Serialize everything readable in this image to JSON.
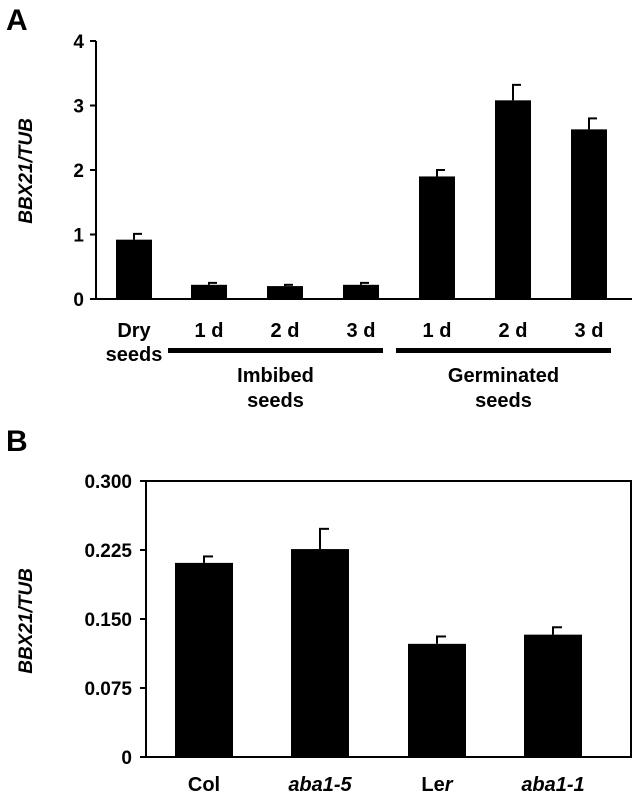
{
  "chart_data": [
    {
      "type": "bar",
      "panel_label": "A",
      "ylabel": "BBX21/TUB",
      "ylim": [
        0,
        4
      ],
      "yticks": [
        "0",
        "1",
        "2",
        "3",
        "4"
      ],
      "categories": [
        "Dry seeds",
        "1 d",
        "2 d",
        "3 d",
        "1 d",
        "2 d",
        "3 d"
      ],
      "category_lines": [
        [
          "Dry",
          "seeds"
        ],
        [
          "1 d"
        ],
        [
          "2 d"
        ],
        [
          "3 d"
        ],
        [
          "1 d"
        ],
        [
          "2 d"
        ],
        [
          "3 d"
        ]
      ],
      "values": [
        0.92,
        0.22,
        0.2,
        0.22,
        1.9,
        3.08,
        2.63
      ],
      "errors": [
        0.09,
        0.03,
        0.02,
        0.03,
        0.1,
        0.24,
        0.17
      ],
      "groups": [
        {
          "lines": [
            "Imbibed",
            "seeds"
          ],
          "categories": [
            1,
            3
          ]
        },
        {
          "lines": [
            "Germinated",
            "seeds"
          ],
          "categories": [
            4,
            6
          ]
        }
      ],
      "bar_color": "#000000",
      "grid": false
    },
    {
      "type": "bar",
      "panel_label": "B",
      "ylabel": "BBX21/TUB",
      "ylim": [
        0,
        0.3
      ],
      "yticks": [
        "0",
        "0.075",
        "0.150",
        "0.225",
        "0.300"
      ],
      "categories": [
        "Col",
        "aba1-5",
        "Ler",
        "aba1-1"
      ],
      "category_parts": [
        [
          {
            "t": "Col",
            "i": false
          }
        ],
        [
          {
            "t": "aba1-5",
            "i": true
          }
        ],
        [
          {
            "t": "Le",
            "i": false
          },
          {
            "t": "r",
            "i": true
          }
        ],
        [
          {
            "t": "aba1-1",
            "i": true
          }
        ]
      ],
      "values": [
        0.211,
        0.226,
        0.123,
        0.133
      ],
      "errors": [
        0.007,
        0.022,
        0.008,
        0.008
      ],
      "bar_color": "#000000",
      "grid": false
    }
  ]
}
